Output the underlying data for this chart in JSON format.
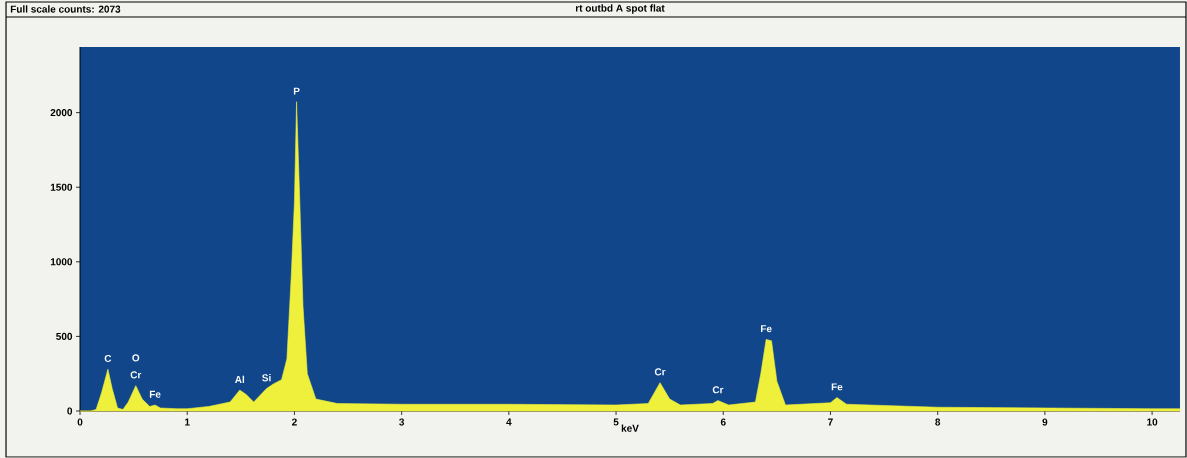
{
  "chart_data": {
    "type": "area",
    "title": "rt outbd A spot flat",
    "xlabel": "keV",
    "annotations": [
      "Full scale counts: 2073",
      {
        "text": "C",
        "x": 0.26,
        "y": 280
      },
      {
        "text": "O",
        "x": 0.52,
        "y": 170
      },
      {
        "text": "Cr",
        "x": 0.52,
        "y": 170
      },
      {
        "text": "Fe",
        "x": 0.7,
        "y": 40
      },
      {
        "text": "Al",
        "x": 1.49,
        "y": 140
      },
      {
        "text": "Si",
        "x": 1.74,
        "y": 150
      },
      {
        "text": "P",
        "x": 2.02,
        "y": 2073
      },
      {
        "text": "Cr",
        "x": 5.41,
        "y": 190
      },
      {
        "text": "Cr",
        "x": 5.95,
        "y": 70
      },
      {
        "text": "Fe",
        "x": 6.4,
        "y": 480
      },
      {
        "text": "Fe",
        "x": 7.06,
        "y": 90
      }
    ],
    "x": [
      0,
      0.1,
      0.15,
      0.2,
      0.26,
      0.3,
      0.35,
      0.4,
      0.45,
      0.52,
      0.58,
      0.65,
      0.7,
      0.75,
      0.9,
      1.0,
      1.2,
      1.4,
      1.49,
      1.55,
      1.62,
      1.7,
      1.74,
      1.8,
      1.88,
      1.93,
      1.97,
      2.0,
      2.02,
      2.05,
      2.08,
      2.12,
      2.2,
      2.4,
      3,
      4,
      5,
      5.3,
      5.41,
      5.5,
      5.6,
      5.9,
      5.95,
      6.05,
      6.3,
      6.35,
      6.4,
      6.45,
      6.5,
      6.58,
      7.0,
      7.06,
      7.15,
      8,
      9,
      10,
      10.26
    ],
    "series": [
      {
        "color": "#eef03c",
        "values": [
          0,
          0,
          10,
          120,
          280,
          150,
          20,
          10,
          60,
          170,
          80,
          30,
          40,
          20,
          15,
          15,
          30,
          60,
          140,
          110,
          60,
          120,
          150,
          180,
          210,
          350,
          900,
          1400,
          2073,
          1400,
          700,
          250,
          80,
          50,
          45,
          45,
          40,
          50,
          190,
          80,
          40,
          50,
          70,
          40,
          60,
          250,
          480,
          470,
          200,
          40,
          55,
          90,
          45,
          25,
          20,
          15,
          15
        ]
      }
    ],
    "xlim": [
      0,
      10.26
    ],
    "ylim": [
      0,
      2440
    ],
    "xticks": [
      0,
      1,
      2,
      3,
      4,
      5,
      6,
      7,
      8,
      9,
      10
    ],
    "yticks": [
      0,
      500,
      1000,
      1500,
      2000
    ],
    "grid": false
  }
}
